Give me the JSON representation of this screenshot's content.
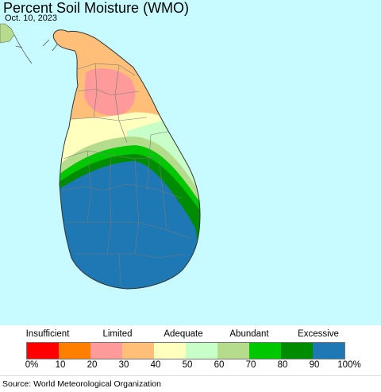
{
  "header": {
    "title": "Percent Soil Moisture (WMO)",
    "date": "Oct. 10, 2023"
  },
  "map": {
    "ocean_color": "#c8fbff",
    "land_color": "#ffffff",
    "border_color": "#888888"
  },
  "legend": {
    "categories": [
      "Insufficient",
      "Limited",
      "Adequate",
      "Abundant",
      "Excessive"
    ],
    "colors": [
      "#ff0000",
      "#ff7f00",
      "#ff9a9a",
      "#ffbf78",
      "#ffffbe",
      "#c8ffc8",
      "#b4dc8c",
      "#00c800",
      "#008c00",
      "#1e78b4"
    ],
    "ticks": [
      "0%",
      "10",
      "20",
      "30",
      "40",
      "50",
      "60",
      "70",
      "80",
      "90",
      "100%"
    ]
  },
  "footer": {
    "source": "Source: World Meteorological Organization"
  }
}
